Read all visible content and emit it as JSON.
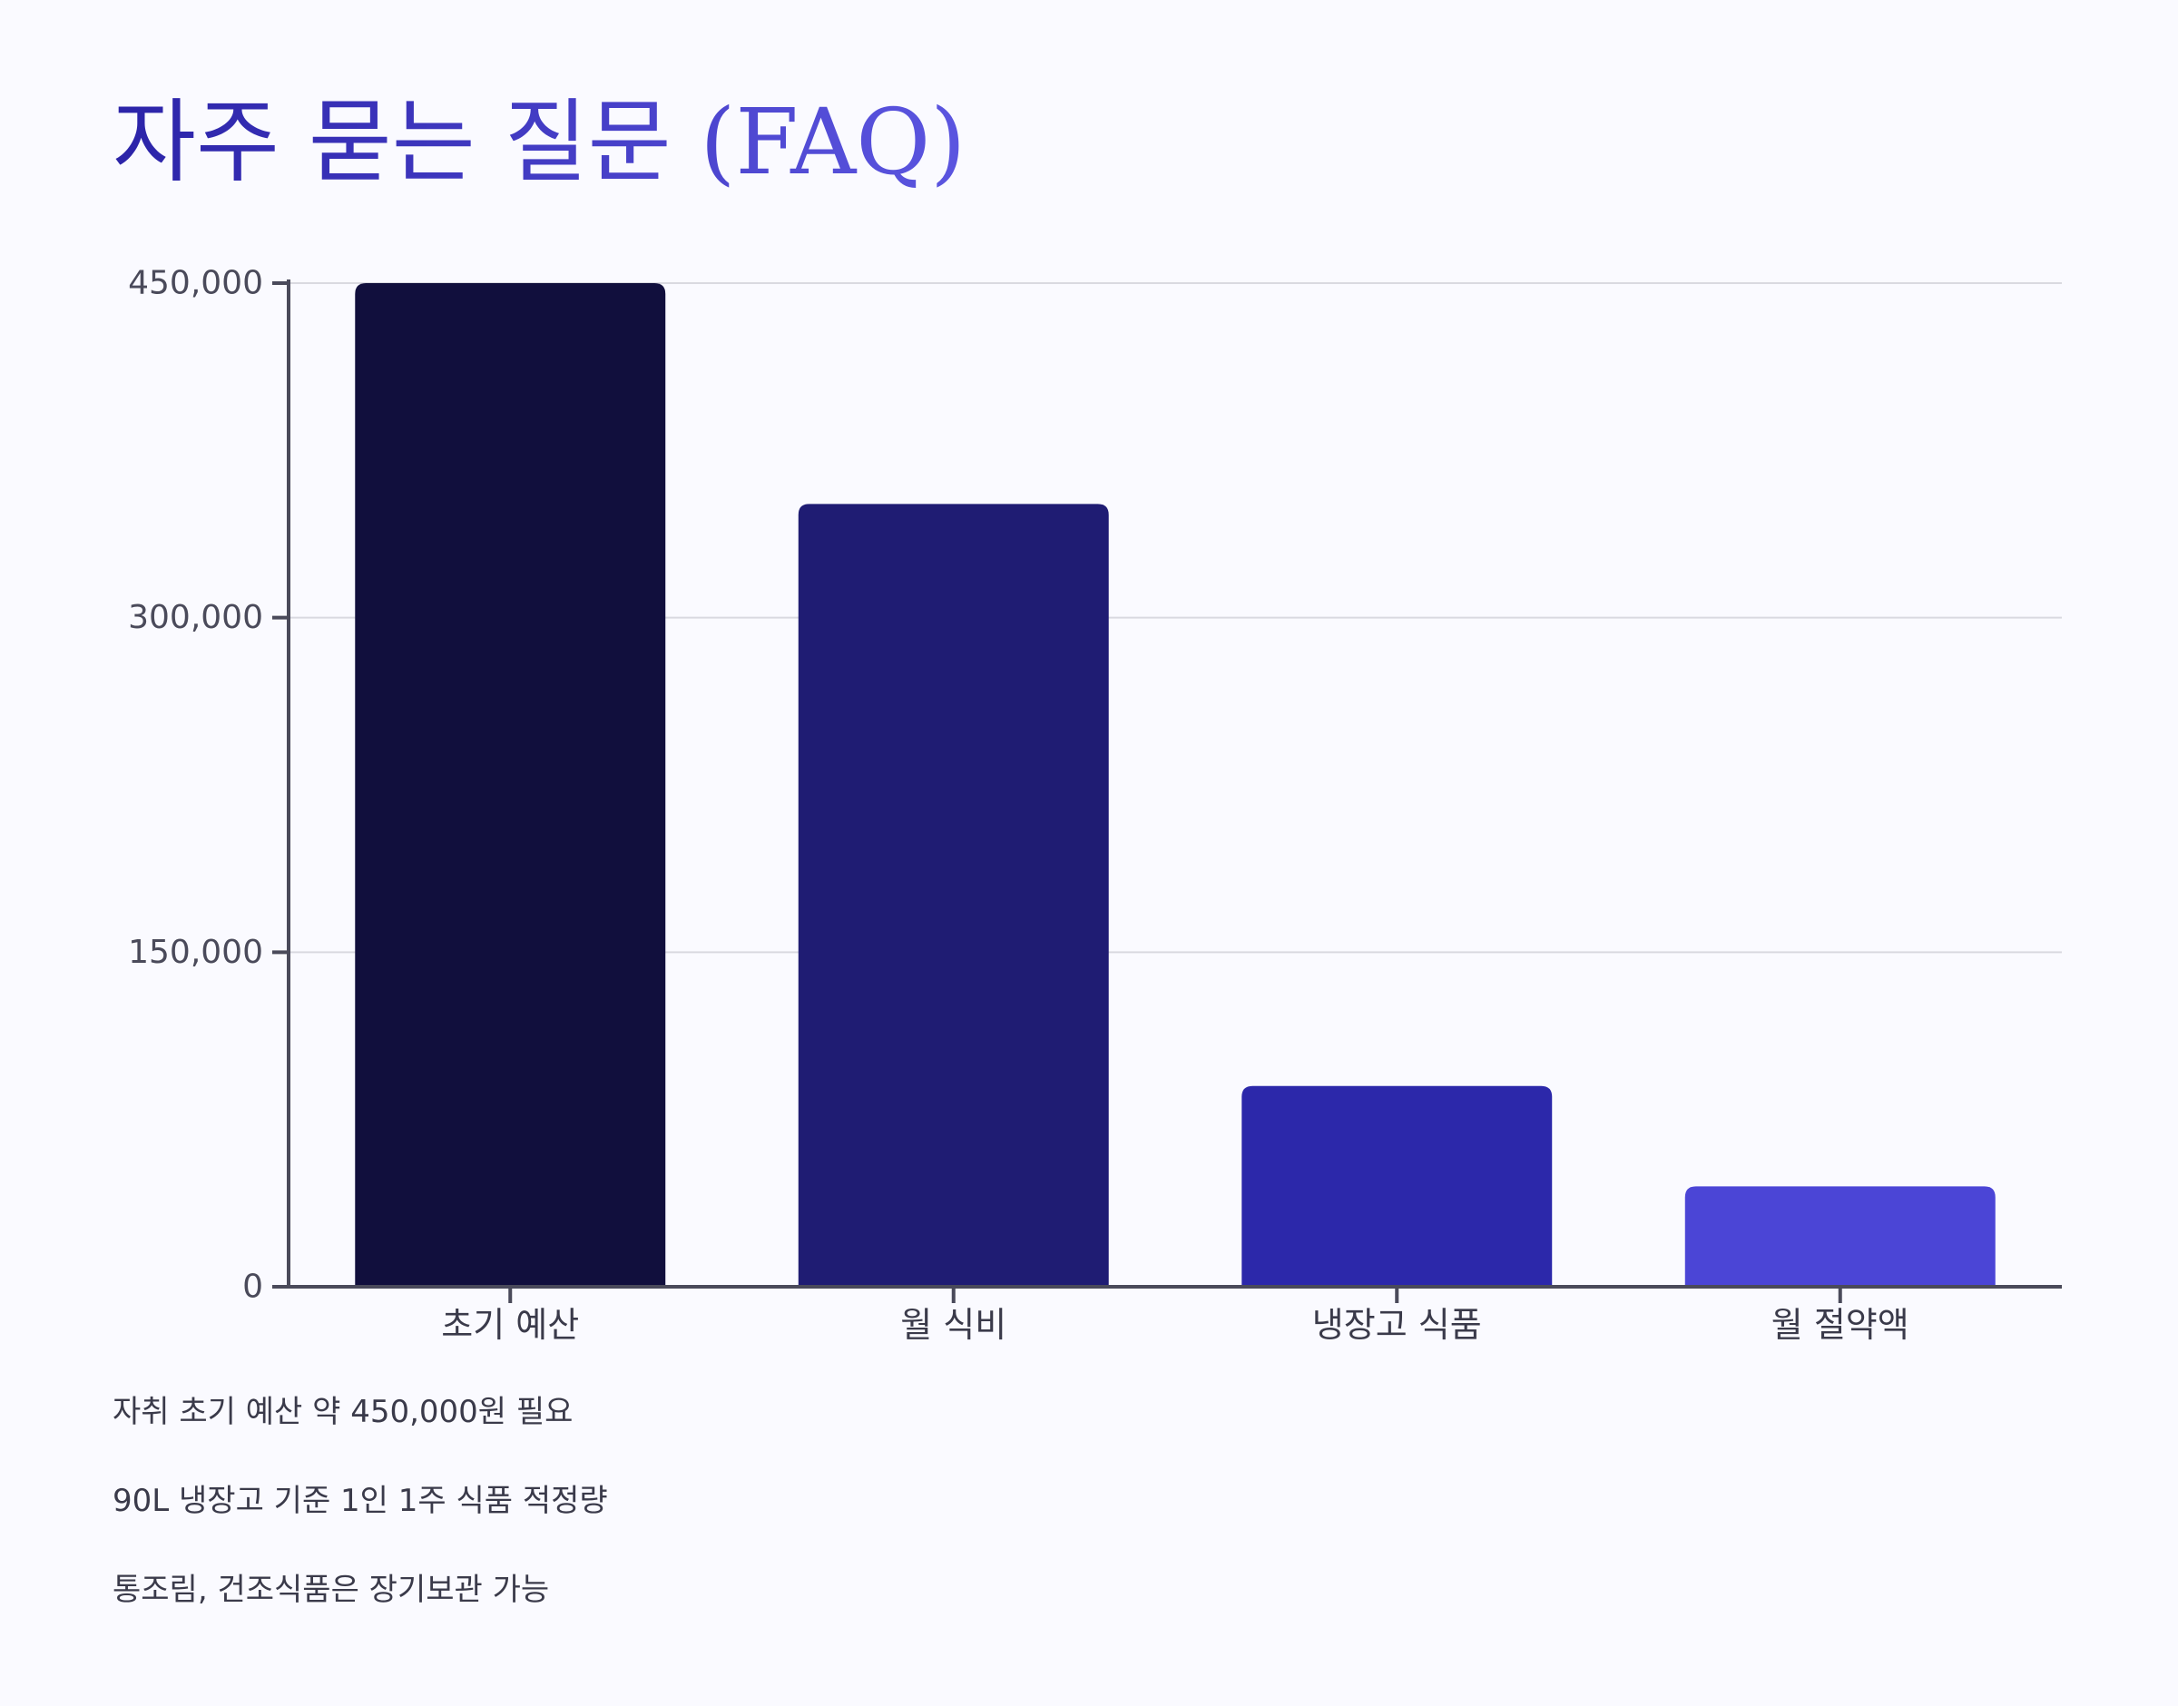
{
  "title": "자주 묻는 질문 (FAQ)",
  "colors": {
    "background": "#fafaff",
    "title_start": "#2b23a8",
    "title_end": "#5b55e0",
    "axis": "#4a4a5a",
    "grid": "#d9d9e0",
    "bars": [
      "#110f3d",
      "#1f1c73",
      "#2c28aa",
      "#4b45d6"
    ]
  },
  "chart_data": {
    "type": "bar",
    "categories": [
      "초기 예산",
      "월 식비",
      "냉장고 식품",
      "월 절약액"
    ],
    "values": [
      450000,
      351000,
      90000,
      45000
    ],
    "title": "",
    "xlabel": "",
    "ylabel": "",
    "ylim": [
      0,
      450000
    ],
    "yticks": [
      0,
      150000,
      300000,
      450000
    ],
    "ytick_labels": [
      "0",
      "150,000",
      "300,000",
      "450,000"
    ],
    "grid": true,
    "legend": "none"
  },
  "notes": [
    "자취 초기 예산 약 450,000원 필요",
    "90L 냉장고 기준 1인 1주 식품 적정량",
    "통조림, 건조식품은 장기보관 가능"
  ]
}
